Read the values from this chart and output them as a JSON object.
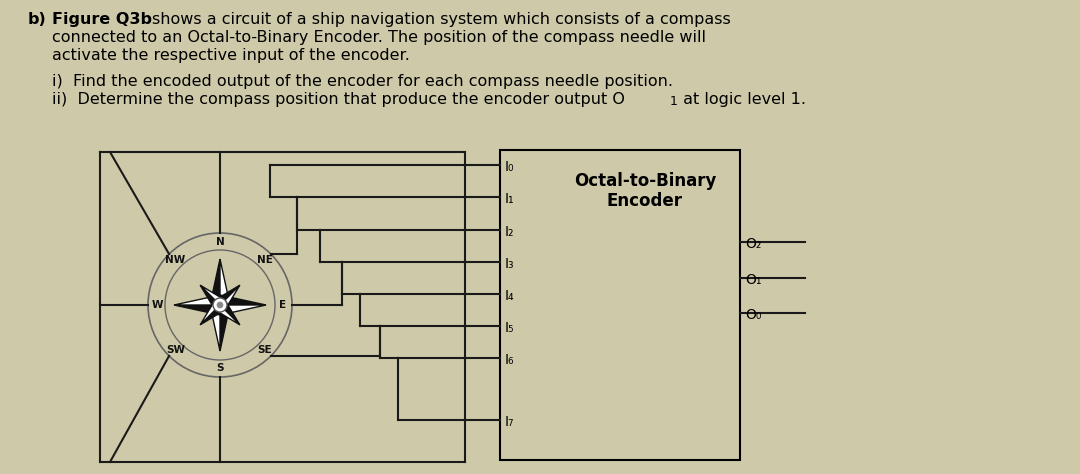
{
  "bg_color": "#cec9a8",
  "text_color": "#000000",
  "encoder_title1": "Octal-to-Binary",
  "encoder_title2": "Encoder",
  "inputs": [
    "I₀",
    "I₁",
    "I₂",
    "I₃",
    "I₄",
    "I₅",
    "I₆",
    "I₇"
  ],
  "outputs": [
    "O₂",
    "O₁",
    "O₀"
  ],
  "box_color": "#000000",
  "line_color": "#1a1a1a",
  "compass_line_color": "#555555",
  "compass_rose_color": "#111111"
}
